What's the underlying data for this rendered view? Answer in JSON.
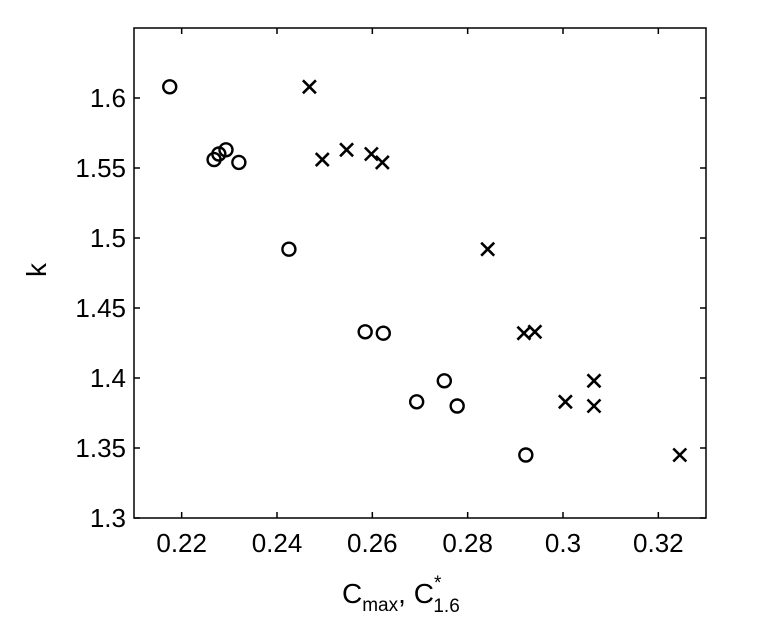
{
  "chart_data": {
    "type": "scatter",
    "xlabel": {
      "main1": "C",
      "sub1": "max",
      "sep": ", ",
      "main2": "C",
      "sup2": "*",
      "sub2": "1.6"
    },
    "ylabel": "k",
    "xlim": [
      0.21,
      0.33
    ],
    "ylim": [
      1.3,
      1.65
    ],
    "xticks": [
      0.22,
      0.24,
      0.26,
      0.28,
      0.3,
      0.32
    ],
    "xtick_labels": [
      "0.22",
      "0.24",
      "0.26",
      "0.28",
      "0.3",
      "0.32"
    ],
    "yticks": [
      1.3,
      1.35,
      1.4,
      1.45,
      1.5,
      1.55,
      1.6
    ],
    "ytick_labels": [
      "1.3",
      "1.35",
      "1.4",
      "1.45",
      "1.5",
      "1.55",
      "1.6"
    ],
    "grid": false,
    "series": [
      {
        "marker": "circle",
        "points": [
          {
            "x": 0.2175,
            "y": 1.608
          },
          {
            "x": 0.2268,
            "y": 1.556
          },
          {
            "x": 0.2278,
            "y": 1.56
          },
          {
            "x": 0.2293,
            "y": 1.563
          },
          {
            "x": 0.232,
            "y": 1.554
          },
          {
            "x": 0.2425,
            "y": 1.492
          },
          {
            "x": 0.2585,
            "y": 1.433
          },
          {
            "x": 0.2623,
            "y": 1.432
          },
          {
            "x": 0.2693,
            "y": 1.383
          },
          {
            "x": 0.2751,
            "y": 1.398
          },
          {
            "x": 0.2778,
            "y": 1.38
          },
          {
            "x": 0.2922,
            "y": 1.345
          }
        ]
      },
      {
        "marker": "x",
        "points": [
          {
            "x": 0.2468,
            "y": 1.608
          },
          {
            "x": 0.2495,
            "y": 1.556
          },
          {
            "x": 0.2546,
            "y": 1.563
          },
          {
            "x": 0.2598,
            "y": 1.56
          },
          {
            "x": 0.2621,
            "y": 1.554
          },
          {
            "x": 0.2842,
            "y": 1.492
          },
          {
            "x": 0.2918,
            "y": 1.432
          },
          {
            "x": 0.2941,
            "y": 1.433
          },
          {
            "x": 0.3005,
            "y": 1.383
          },
          {
            "x": 0.3065,
            "y": 1.398
          },
          {
            "x": 0.3065,
            "y": 1.38
          },
          {
            "x": 0.3245,
            "y": 1.345
          }
        ]
      }
    ]
  }
}
